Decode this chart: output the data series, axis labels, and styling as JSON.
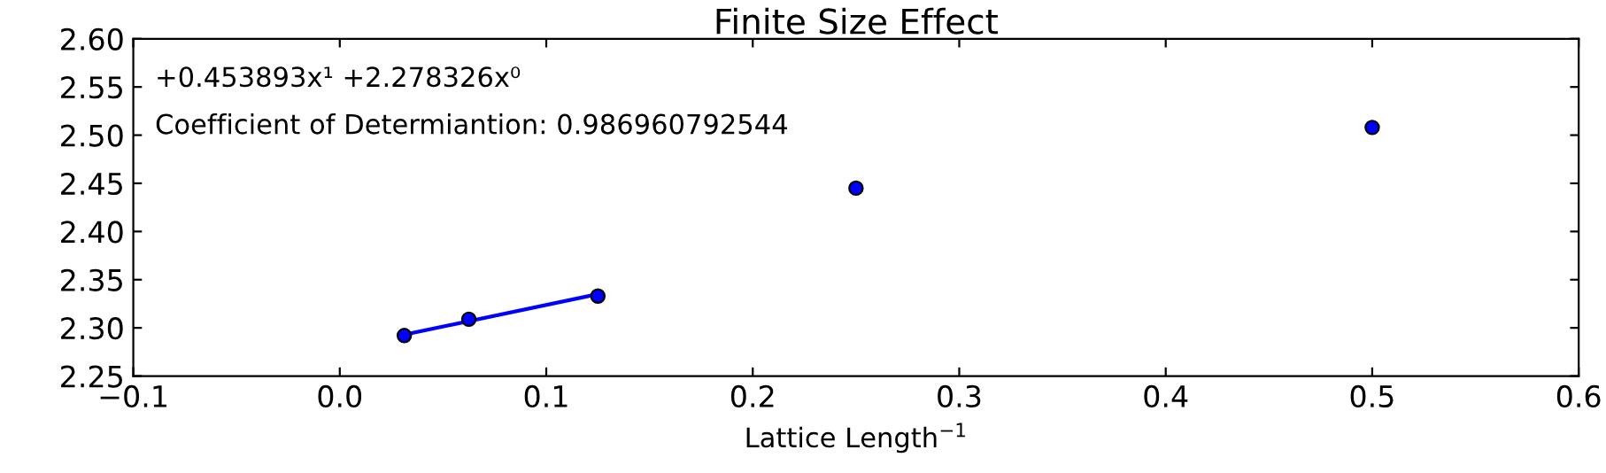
{
  "chart_data": {
    "type": "scatter",
    "title": "Finite Size Effect",
    "xlabel": "Lattice Length$^{−1}$",
    "xlim": [
      -0.1,
      0.6
    ],
    "xticks": [
      {
        "value": -0.1,
        "label": "−0.1"
      },
      {
        "value": 0.0,
        "label": "0.0"
      },
      {
        "value": 0.1,
        "label": "0.1"
      },
      {
        "value": 0.2,
        "label": "0.2"
      },
      {
        "value": 0.3,
        "label": "0.3"
      },
      {
        "value": 0.4,
        "label": "0.4"
      },
      {
        "value": 0.5,
        "label": "0.5"
      },
      {
        "value": 0.6,
        "label": "0.6"
      }
    ],
    "ylim": [
      2.25,
      2.6
    ],
    "yticks": [
      {
        "value": 2.25,
        "label": "2.25"
      },
      {
        "value": 2.3,
        "label": "2.30"
      },
      {
        "value": 2.35,
        "label": "2.35"
      },
      {
        "value": 2.4,
        "label": "2.40"
      },
      {
        "value": 2.45,
        "label": "2.45"
      },
      {
        "value": 2.5,
        "label": "2.50"
      },
      {
        "value": 2.55,
        "label": "2.55"
      },
      {
        "value": 2.6,
        "label": "2.60"
      }
    ],
    "grid": false,
    "legend": false,
    "series": [
      {
        "color": "#0000ff",
        "marker": "circle",
        "x": [
          0.03125,
          0.0625,
          0.125,
          0.25,
          0.5
        ],
        "values": [
          2.292,
          2.309,
          2.333,
          2.445,
          2.508
        ]
      },
      {
        "type": "line",
        "color": "#0000ff",
        "marker": "none",
        "line_style": "solid",
        "x": [
          0.03125,
          0.125
        ],
        "values": [
          2.293,
          2.335
        ]
      }
    ],
    "annotations": [
      "+0.453893x¹ +2.278326x⁰",
      "Coefficient of Determiantion: 0.986960792544"
    ]
  }
}
